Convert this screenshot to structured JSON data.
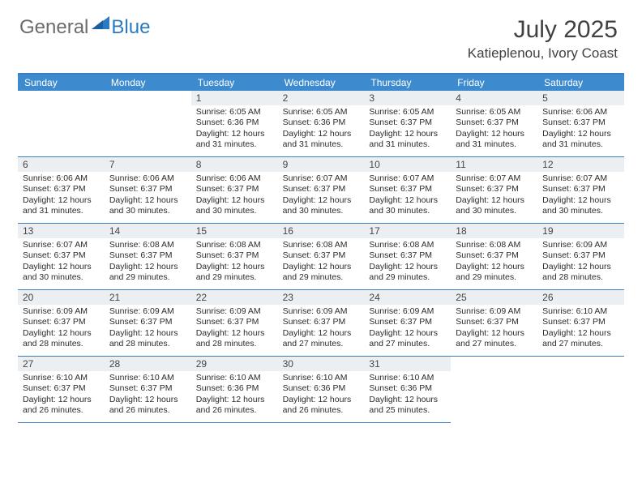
{
  "logo": {
    "general": "General",
    "blue": "Blue"
  },
  "title": "July 2025",
  "location": "Katieplenou, Ivory Coast",
  "colors": {
    "header_bg": "#3d8bce",
    "header_border": "#3a7fc0",
    "daynum_bg": "#eceff1",
    "text_dark": "#2b2b2b",
    "logo_gray": "#6b6b6b",
    "logo_blue": "#2b7ac4"
  },
  "weekdays": [
    "Sunday",
    "Monday",
    "Tuesday",
    "Wednesday",
    "Thursday",
    "Friday",
    "Saturday"
  ],
  "first_weekday_index": 2,
  "days": [
    {
      "n": 1,
      "sr": "6:05 AM",
      "ss": "6:36 PM",
      "dl": "12 hours and 31 minutes."
    },
    {
      "n": 2,
      "sr": "6:05 AM",
      "ss": "6:36 PM",
      "dl": "12 hours and 31 minutes."
    },
    {
      "n": 3,
      "sr": "6:05 AM",
      "ss": "6:37 PM",
      "dl": "12 hours and 31 minutes."
    },
    {
      "n": 4,
      "sr": "6:05 AM",
      "ss": "6:37 PM",
      "dl": "12 hours and 31 minutes."
    },
    {
      "n": 5,
      "sr": "6:06 AM",
      "ss": "6:37 PM",
      "dl": "12 hours and 31 minutes."
    },
    {
      "n": 6,
      "sr": "6:06 AM",
      "ss": "6:37 PM",
      "dl": "12 hours and 31 minutes."
    },
    {
      "n": 7,
      "sr": "6:06 AM",
      "ss": "6:37 PM",
      "dl": "12 hours and 30 minutes."
    },
    {
      "n": 8,
      "sr": "6:06 AM",
      "ss": "6:37 PM",
      "dl": "12 hours and 30 minutes."
    },
    {
      "n": 9,
      "sr": "6:07 AM",
      "ss": "6:37 PM",
      "dl": "12 hours and 30 minutes."
    },
    {
      "n": 10,
      "sr": "6:07 AM",
      "ss": "6:37 PM",
      "dl": "12 hours and 30 minutes."
    },
    {
      "n": 11,
      "sr": "6:07 AM",
      "ss": "6:37 PM",
      "dl": "12 hours and 30 minutes."
    },
    {
      "n": 12,
      "sr": "6:07 AM",
      "ss": "6:37 PM",
      "dl": "12 hours and 30 minutes."
    },
    {
      "n": 13,
      "sr": "6:07 AM",
      "ss": "6:37 PM",
      "dl": "12 hours and 30 minutes."
    },
    {
      "n": 14,
      "sr": "6:08 AM",
      "ss": "6:37 PM",
      "dl": "12 hours and 29 minutes."
    },
    {
      "n": 15,
      "sr": "6:08 AM",
      "ss": "6:37 PM",
      "dl": "12 hours and 29 minutes."
    },
    {
      "n": 16,
      "sr": "6:08 AM",
      "ss": "6:37 PM",
      "dl": "12 hours and 29 minutes."
    },
    {
      "n": 17,
      "sr": "6:08 AM",
      "ss": "6:37 PM",
      "dl": "12 hours and 29 minutes."
    },
    {
      "n": 18,
      "sr": "6:08 AM",
      "ss": "6:37 PM",
      "dl": "12 hours and 29 minutes."
    },
    {
      "n": 19,
      "sr": "6:09 AM",
      "ss": "6:37 PM",
      "dl": "12 hours and 28 minutes."
    },
    {
      "n": 20,
      "sr": "6:09 AM",
      "ss": "6:37 PM",
      "dl": "12 hours and 28 minutes."
    },
    {
      "n": 21,
      "sr": "6:09 AM",
      "ss": "6:37 PM",
      "dl": "12 hours and 28 minutes."
    },
    {
      "n": 22,
      "sr": "6:09 AM",
      "ss": "6:37 PM",
      "dl": "12 hours and 28 minutes."
    },
    {
      "n": 23,
      "sr": "6:09 AM",
      "ss": "6:37 PM",
      "dl": "12 hours and 27 minutes."
    },
    {
      "n": 24,
      "sr": "6:09 AM",
      "ss": "6:37 PM",
      "dl": "12 hours and 27 minutes."
    },
    {
      "n": 25,
      "sr": "6:09 AM",
      "ss": "6:37 PM",
      "dl": "12 hours and 27 minutes."
    },
    {
      "n": 26,
      "sr": "6:10 AM",
      "ss": "6:37 PM",
      "dl": "12 hours and 27 minutes."
    },
    {
      "n": 27,
      "sr": "6:10 AM",
      "ss": "6:37 PM",
      "dl": "12 hours and 26 minutes."
    },
    {
      "n": 28,
      "sr": "6:10 AM",
      "ss": "6:37 PM",
      "dl": "12 hours and 26 minutes."
    },
    {
      "n": 29,
      "sr": "6:10 AM",
      "ss": "6:36 PM",
      "dl": "12 hours and 26 minutes."
    },
    {
      "n": 30,
      "sr": "6:10 AM",
      "ss": "6:36 PM",
      "dl": "12 hours and 26 minutes."
    },
    {
      "n": 31,
      "sr": "6:10 AM",
      "ss": "6:36 PM",
      "dl": "12 hours and 25 minutes."
    }
  ],
  "labels": {
    "sunrise": "Sunrise:",
    "sunset": "Sunset:",
    "daylight": "Daylight:"
  }
}
